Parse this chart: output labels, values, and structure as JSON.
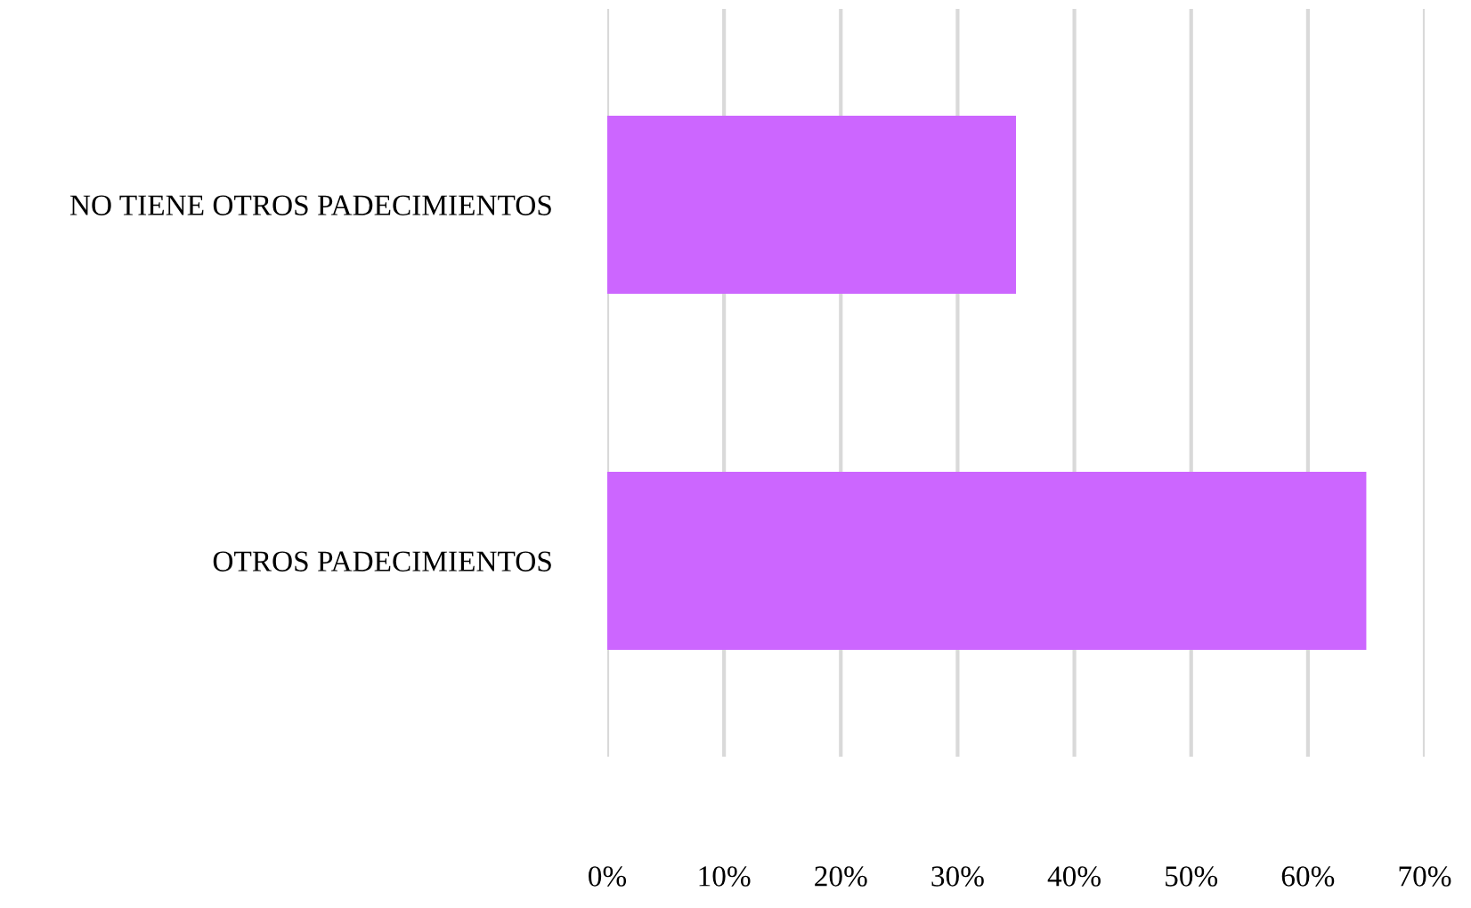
{
  "chart_data": {
    "type": "bar",
    "orientation": "horizontal",
    "categories": [
      "NO TIENE OTROS PADECIMIENTOS",
      "OTROS PADECIMIENTOS"
    ],
    "values": [
      35,
      65
    ],
    "color": "#cc66ff",
    "xlim": [
      0,
      70
    ],
    "xticks": [
      {
        "value": 0,
        "label": "0%"
      },
      {
        "value": 10,
        "label": "10%"
      },
      {
        "value": 20,
        "label": "20%"
      },
      {
        "value": 30,
        "label": "30%"
      },
      {
        "value": 40,
        "label": "40%"
      },
      {
        "value": 50,
        "label": "50%"
      },
      {
        "value": 60,
        "label": "60%"
      },
      {
        "value": 70,
        "label": "70%"
      }
    ],
    "grid": "x"
  }
}
